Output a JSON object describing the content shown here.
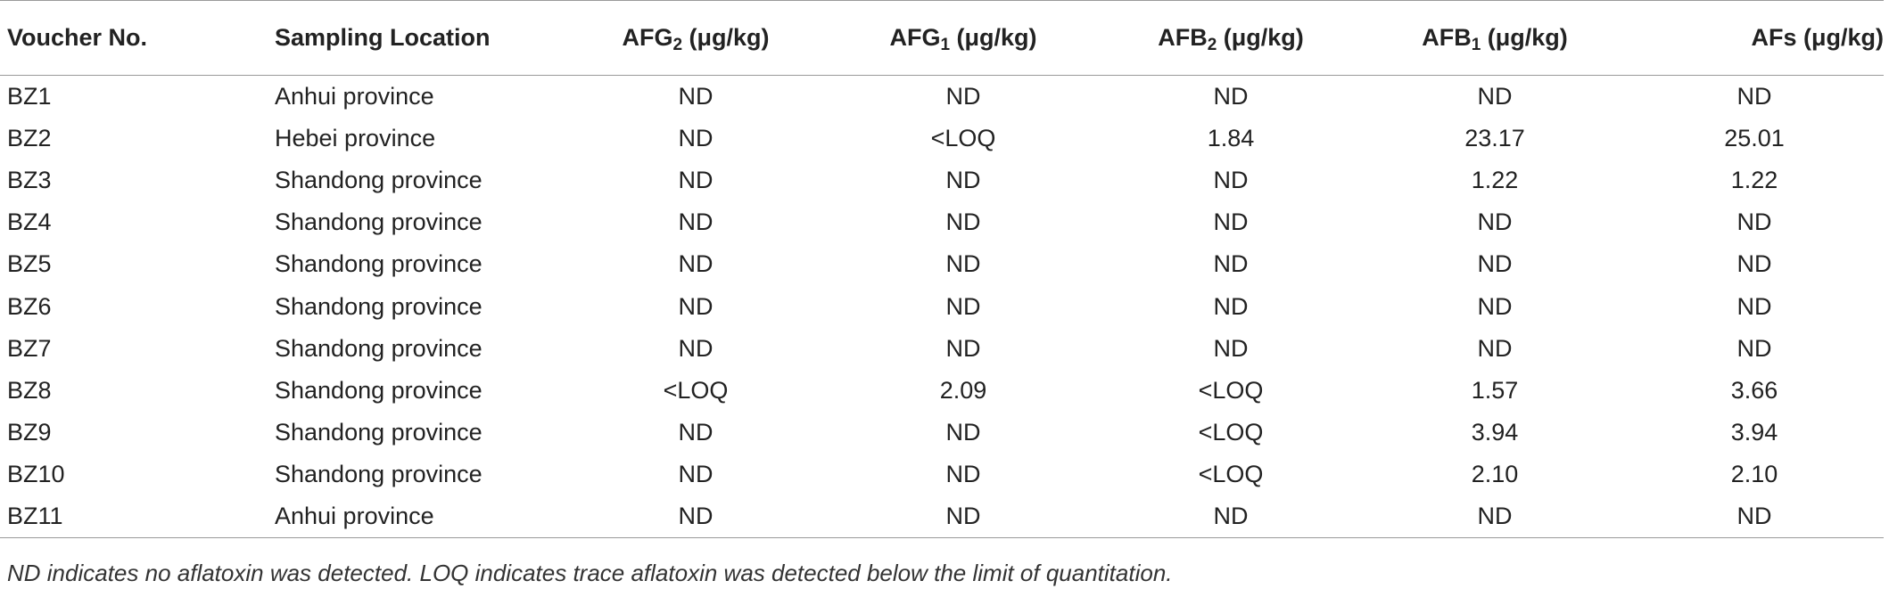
{
  "table": {
    "headers": [
      {
        "pre": "Voucher No.",
        "sub": "",
        "post": "",
        "align": "left"
      },
      {
        "pre": "Sampling Location",
        "sub": "",
        "post": "",
        "align": "left"
      },
      {
        "pre": "AFG",
        "sub": "2",
        "post": " (μg/kg)",
        "align": "center"
      },
      {
        "pre": "AFG",
        "sub": "1",
        "post": " (μg/kg)",
        "align": "center"
      },
      {
        "pre": "AFB",
        "sub": "2",
        "post": " (μg/kg)",
        "align": "center"
      },
      {
        "pre": "AFB",
        "sub": "1",
        "post": " (μg/kg)",
        "align": "center"
      },
      {
        "pre": "AFs (μg/kg)",
        "sub": "",
        "post": "",
        "align": "right"
      }
    ],
    "rows": [
      [
        "BZ1",
        "Anhui province",
        "ND",
        "ND",
        "ND",
        "ND",
        "ND"
      ],
      [
        "BZ2",
        "Hebei province",
        "ND",
        "<LOQ",
        "1.84",
        "23.17",
        "25.01"
      ],
      [
        "BZ3",
        "Shandong province",
        "ND",
        "ND",
        "ND",
        "1.22",
        "1.22"
      ],
      [
        "BZ4",
        "Shandong province",
        "ND",
        "ND",
        "ND",
        "ND",
        "ND"
      ],
      [
        "BZ5",
        "Shandong province",
        "ND",
        "ND",
        "ND",
        "ND",
        "ND"
      ],
      [
        "BZ6",
        "Shandong province",
        "ND",
        "ND",
        "ND",
        "ND",
        "ND"
      ],
      [
        "BZ7",
        "Shandong province",
        "ND",
        "ND",
        "ND",
        "ND",
        "ND"
      ],
      [
        "BZ8",
        "Shandong province",
        "<LOQ",
        "2.09",
        "<LOQ",
        "1.57",
        "3.66"
      ],
      [
        "BZ9",
        "Shandong province",
        "ND",
        "ND",
        "<LOQ",
        "3.94",
        "3.94"
      ],
      [
        "BZ10",
        "Shandong province",
        "ND",
        "ND",
        "<LOQ",
        "2.10",
        "2.10"
      ],
      [
        "BZ11",
        "Anhui province",
        "ND",
        "ND",
        "ND",
        "ND",
        "ND"
      ]
    ]
  },
  "footnote": "ND indicates no aflatoxin was detected. LOQ indicates trace aflatoxin was detected below the limit of quantitation."
}
